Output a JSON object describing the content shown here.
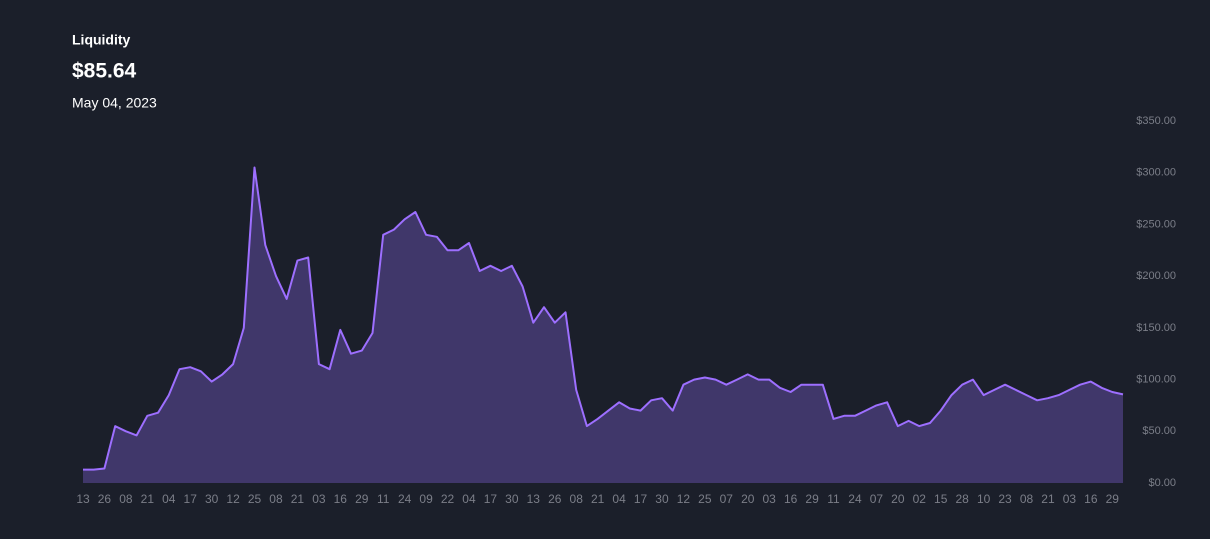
{
  "chart_data": {
    "type": "area",
    "title": "Liquidity",
    "headline": "$85.64",
    "date": "May 04, 2023",
    "categories": [
      "13",
      null,
      "26",
      null,
      "08",
      null,
      "21",
      null,
      "04",
      null,
      "17",
      null,
      "30",
      null,
      "12",
      null,
      "25",
      null,
      "08",
      null,
      "21",
      null,
      "03",
      null,
      "16",
      null,
      "29",
      null,
      "11",
      null,
      "24",
      null,
      "09",
      null,
      "22",
      null,
      "04",
      null,
      "17",
      null,
      "30",
      null,
      "13",
      null,
      "26",
      null,
      "08",
      null,
      "21",
      null,
      "04",
      null,
      "17",
      null,
      "30",
      null,
      "12",
      null,
      "25",
      null,
      "07",
      null,
      "20",
      null,
      "03",
      null,
      "16",
      null,
      "29",
      null,
      "11",
      null,
      "24",
      null,
      "07",
      null,
      "20",
      null,
      "02",
      null,
      "15",
      null,
      "28",
      null,
      "10",
      null,
      "23",
      null,
      "08",
      null,
      "21",
      null,
      "03",
      null,
      "16",
      null,
      "29",
      null
    ],
    "series": [
      {
        "name": "Liquidity",
        "color": "#9d6fff",
        "fill": "#40376a",
        "values": [
          13,
          13,
          14,
          55,
          50,
          46,
          65,
          68,
          85,
          110,
          112,
          108,
          98,
          105,
          115,
          150,
          305,
          230,
          200,
          178,
          215,
          218,
          115,
          110,
          148,
          125,
          128,
          145,
          240,
          245,
          255,
          262,
          240,
          238,
          225,
          225,
          232,
          205,
          210,
          205,
          210,
          190,
          155,
          170,
          155,
          165,
          90,
          55,
          62,
          70,
          78,
          72,
          70,
          80,
          82,
          70,
          95,
          100,
          102,
          100,
          95,
          100,
          105,
          100,
          100,
          92,
          88,
          95,
          95,
          95,
          62,
          65,
          65,
          70,
          75,
          78,
          55,
          60,
          55,
          58,
          70,
          85,
          95,
          100,
          85,
          90,
          95,
          90,
          85,
          80,
          82,
          85,
          90,
          95,
          98,
          92,
          88,
          85.64
        ]
      }
    ],
    "ylim": [
      0,
      350
    ],
    "yticks": [
      {
        "value": 0,
        "label": "$0.00"
      },
      {
        "value": 50,
        "label": "$50.00"
      },
      {
        "value": 100,
        "label": "$100.00"
      },
      {
        "value": 150,
        "label": "$150.00"
      },
      {
        "value": 200,
        "label": "$200.00"
      },
      {
        "value": 250,
        "label": "$250.00"
      },
      {
        "value": 300,
        "label": "$300.00"
      },
      {
        "value": 350,
        "label": "$350.00"
      }
    ],
    "grid": false
  }
}
